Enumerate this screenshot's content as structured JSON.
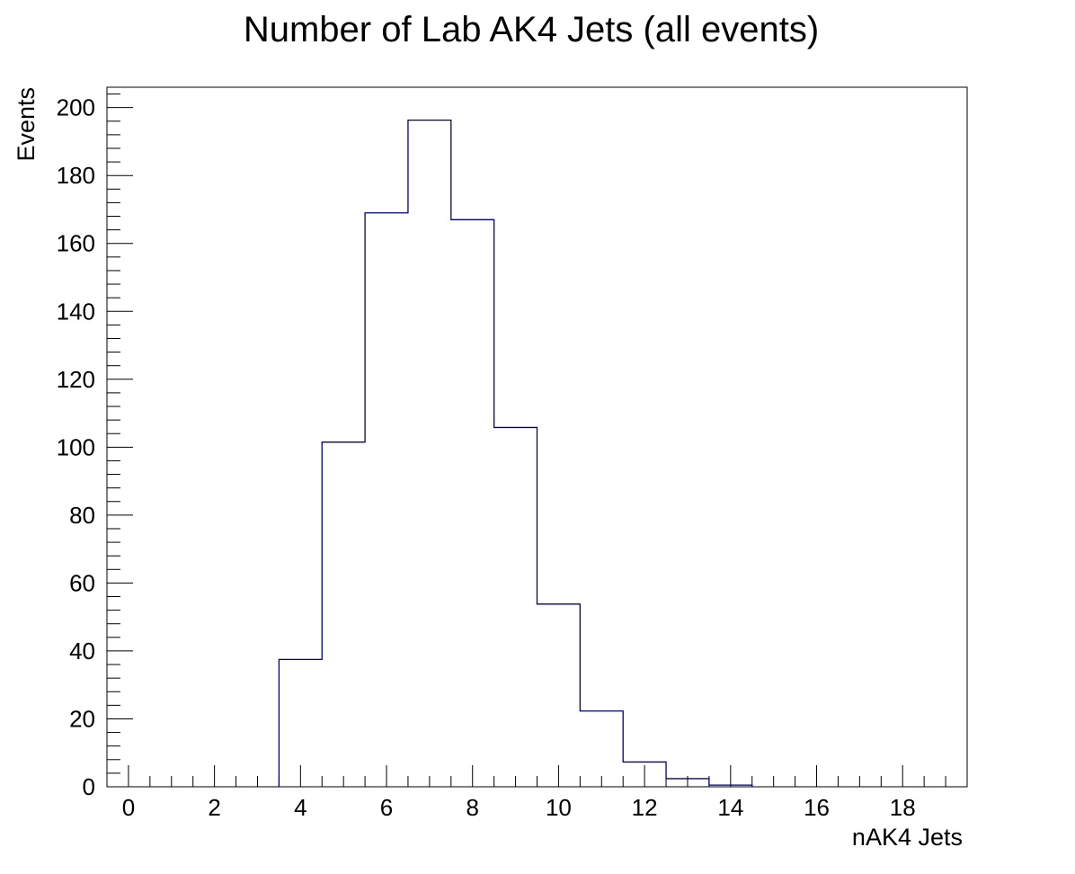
{
  "chart_data": {
    "type": "bar",
    "title": "Number of Lab AK4 Jets (all events)",
    "xlabel": "nAK4 Jets",
    "ylabel": "Events",
    "xlim": [
      -0.5,
      19.5
    ],
    "ylim": [
      0,
      206
    ],
    "x_ticks": [
      0,
      2,
      4,
      6,
      8,
      10,
      12,
      14,
      16,
      18
    ],
    "y_ticks": [
      0,
      20,
      40,
      60,
      80,
      100,
      120,
      140,
      160,
      180,
      200
    ],
    "bins": [
      4,
      5,
      6,
      7,
      8,
      9,
      10,
      11,
      12,
      13,
      14
    ],
    "values": [
      37.5,
      101.5,
      169,
      196.3,
      167,
      105.8,
      53.8,
      22.3,
      7.3,
      2.4,
      0.5
    ],
    "grid": false,
    "line_color": "#000080",
    "frame_color": "#000000"
  }
}
